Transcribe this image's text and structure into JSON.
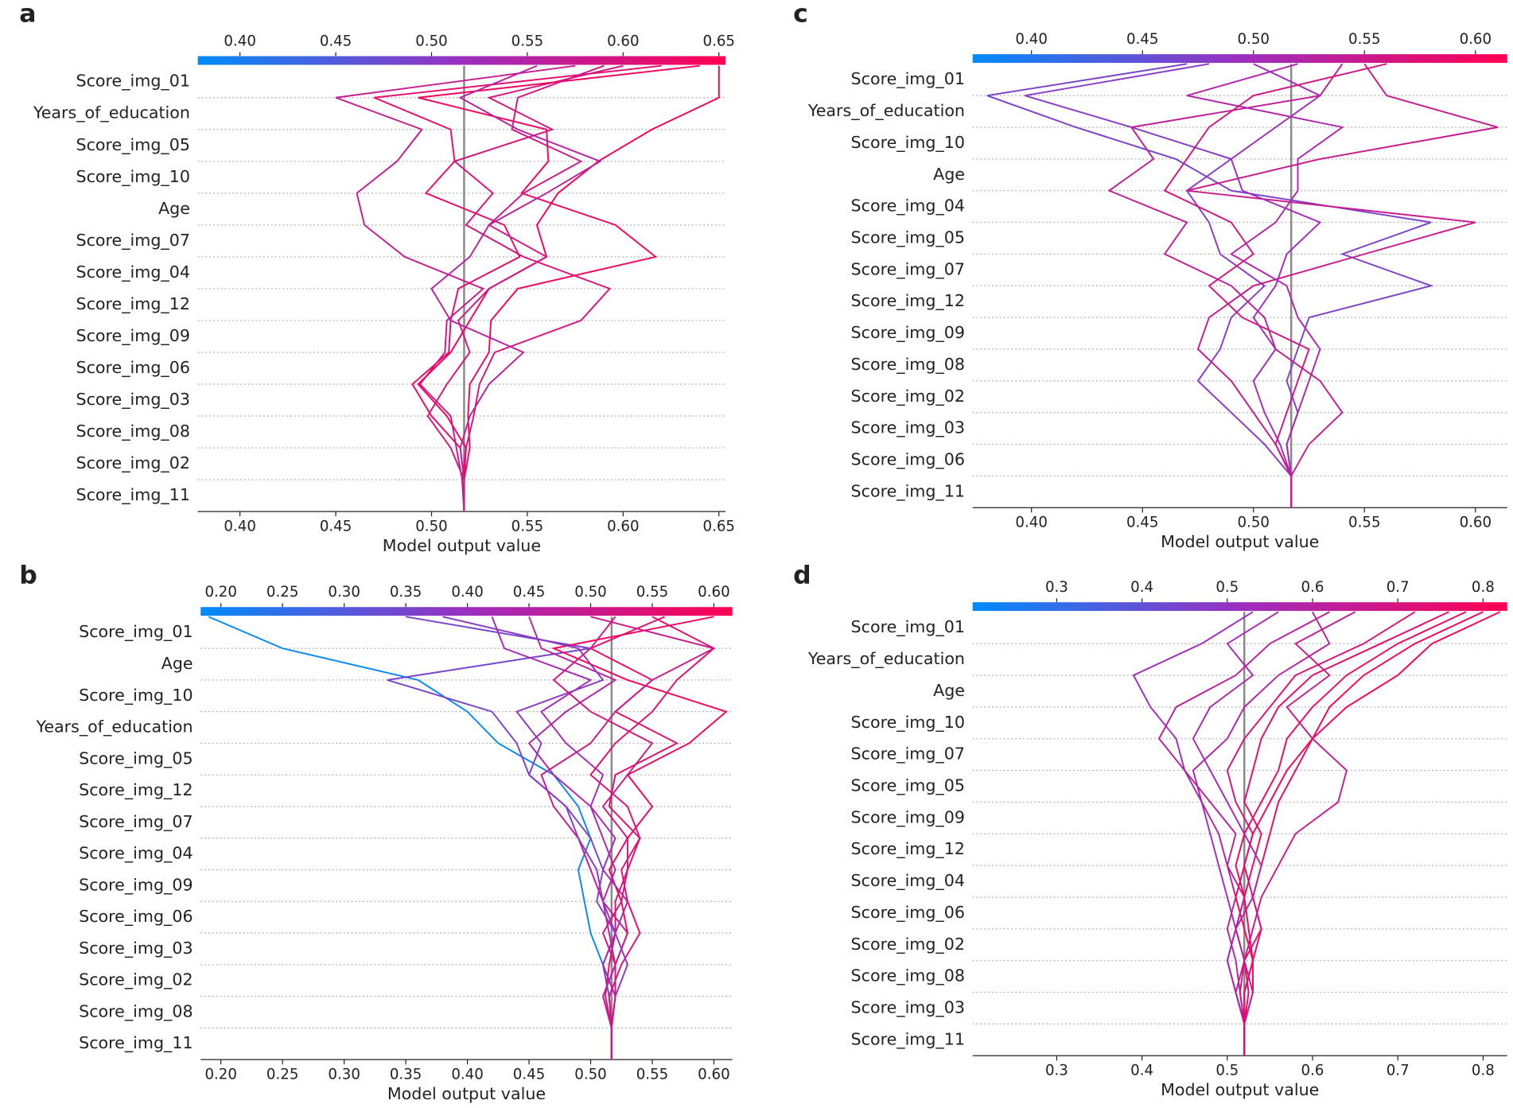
{
  "chart_data": [
    {
      "type": "decision",
      "label": "a",
      "xlabel": "Model output value",
      "features": [
        "Score_img_01",
        "Years_of_education",
        "Score_img_05",
        "Score_img_10",
        "Age",
        "Score_img_07",
        "Score_img_04",
        "Score_img_12",
        "Score_img_09",
        "Score_img_06",
        "Score_img_03",
        "Score_img_08",
        "Score_img_02",
        "Score_img_11"
      ],
      "xlim": [
        0.378,
        0.6535
      ],
      "xticks": [
        {
          "value": 0.4,
          "label": "0.40"
        },
        {
          "value": 0.45,
          "label": "0.45"
        },
        {
          "value": 0.5,
          "label": "0.50"
        },
        {
          "value": 0.55,
          "label": "0.55"
        },
        {
          "value": 0.6,
          "label": "0.60"
        },
        {
          "value": 0.65,
          "label": "0.65"
        }
      ],
      "base_value": 0.517,
      "colormap": [
        "#008bfb",
        "#9b2fc0",
        "#ff0052"
      ],
      "series": [
        {
          "values": [
            0.575,
            0.45,
            0.495,
            0.482,
            0.461,
            0.465,
            0.486,
            0.527,
            0.508,
            0.507,
            0.494,
            0.51,
            0.513,
            0.516
          ]
        },
        {
          "values": [
            0.62,
            0.47,
            0.51,
            0.512,
            0.497,
            0.538,
            0.546,
            0.514,
            0.51,
            0.509,
            0.49,
            0.5,
            0.515,
            0.517
          ]
        },
        {
          "values": [
            0.65,
            0.65,
            0.615,
            0.587,
            0.566,
            0.555,
            0.56,
            0.53,
            0.52,
            0.51,
            0.493,
            0.508,
            0.518,
            0.517
          ]
        },
        {
          "values": [
            0.6,
            0.53,
            0.563,
            0.512,
            0.532,
            0.518,
            0.548,
            0.593,
            0.578,
            0.533,
            0.525,
            0.522,
            0.518,
            0.516
          ]
        },
        {
          "values": [
            0.64,
            0.493,
            0.56,
            0.561,
            0.547,
            0.596,
            0.617,
            0.545,
            0.531,
            0.53,
            0.52,
            0.519,
            0.52,
            0.517
          ]
        },
        {
          "values": [
            0.59,
            0.545,
            0.542,
            0.578,
            0.548,
            0.53,
            0.56,
            0.53,
            0.514,
            0.52,
            0.508,
            0.498,
            0.51,
            0.517
          ]
        },
        {
          "values": [
            0.555,
            0.515,
            0.545,
            0.588,
            0.56,
            0.53,
            0.52,
            0.5,
            0.51,
            0.548,
            0.53,
            0.52,
            0.515,
            0.517
          ]
        }
      ]
    },
    {
      "type": "decision",
      "label": "b",
      "xlabel": "Model output value",
      "features": [
        "Score_img_01",
        "Age",
        "Score_img_10",
        "Years_of_education",
        "Score_img_05",
        "Score_img_12",
        "Score_img_07",
        "Score_img_04",
        "Score_img_09",
        "Score_img_06",
        "Score_img_03",
        "Score_img_02",
        "Score_img_08",
        "Score_img_11"
      ],
      "xlim": [
        0.1836,
        0.615
      ],
      "xticks": [
        {
          "value": 0.2,
          "label": "0.20"
        },
        {
          "value": 0.25,
          "label": "0.25"
        },
        {
          "value": 0.3,
          "label": "0.30"
        },
        {
          "value": 0.35,
          "label": "0.35"
        },
        {
          "value": 0.4,
          "label": "0.40"
        },
        {
          "value": 0.45,
          "label": "0.45"
        },
        {
          "value": 0.5,
          "label": "0.50"
        },
        {
          "value": 0.55,
          "label": "0.55"
        },
        {
          "value": 0.6,
          "label": "0.60"
        }
      ],
      "base_value": 0.517,
      "colormap": [
        "#008bfb",
        "#9b2fc0",
        "#ff0052"
      ],
      "series": [
        {
          "values": [
            0.19,
            0.25,
            0.36,
            0.4,
            0.425,
            0.47,
            0.49,
            0.5,
            0.49,
            0.495,
            0.5,
            0.51,
            0.515,
            0.517
          ]
        },
        {
          "values": [
            0.35,
            0.5,
            0.335,
            0.42,
            0.44,
            0.45,
            0.48,
            0.5,
            0.51,
            0.505,
            0.52,
            0.51,
            0.515,
            0.517
          ]
        },
        {
          "values": [
            0.6,
            0.47,
            0.53,
            0.61,
            0.58,
            0.53,
            0.55,
            0.53,
            0.515,
            0.525,
            0.53,
            0.52,
            0.52,
            0.517
          ]
        },
        {
          "values": [
            0.56,
            0.5,
            0.55,
            0.52,
            0.57,
            0.52,
            0.515,
            0.54,
            0.53,
            0.52,
            0.52,
            0.515,
            0.512,
            0.517
          ]
        },
        {
          "values": [
            0.42,
            0.43,
            0.5,
            0.46,
            0.48,
            0.51,
            0.5,
            0.52,
            0.51,
            0.53,
            0.52,
            0.51,
            0.52,
            0.517
          ]
        },
        {
          "values": [
            0.5,
            0.6,
            0.55,
            0.52,
            0.5,
            0.46,
            0.47,
            0.49,
            0.5,
            0.51,
            0.53,
            0.52,
            0.51,
            0.517
          ]
        },
        {
          "values": [
            0.45,
            0.46,
            0.52,
            0.48,
            0.45,
            0.47,
            0.5,
            0.51,
            0.52,
            0.51,
            0.515,
            0.52,
            0.51,
            0.517
          ]
        },
        {
          "values": [
            0.55,
            0.6,
            0.57,
            0.55,
            0.52,
            0.5,
            0.53,
            0.54,
            0.525,
            0.53,
            0.54,
            0.525,
            0.515,
            0.517
          ]
        },
        {
          "values": [
            0.38,
            0.49,
            0.51,
            0.44,
            0.46,
            0.45,
            0.48,
            0.49,
            0.505,
            0.51,
            0.52,
            0.53,
            0.52,
            0.517
          ]
        },
        {
          "values": [
            0.52,
            0.5,
            0.47,
            0.5,
            0.55,
            0.53,
            0.51,
            0.53,
            0.53,
            0.525,
            0.51,
            0.52,
            0.52,
            0.517
          ]
        }
      ]
    },
    {
      "type": "decision",
      "label": "c",
      "xlabel": "Model output value",
      "features": [
        "Score_img_01",
        "Years_of_education",
        "Score_img_10",
        "Age",
        "Score_img_04",
        "Score_img_05",
        "Score_img_07",
        "Score_img_12",
        "Score_img_09",
        "Score_img_08",
        "Score_img_02",
        "Score_img_03",
        "Score_img_06",
        "Score_img_11"
      ],
      "xlim": [
        0.3735,
        0.6143
      ],
      "xticks": [
        {
          "value": 0.4,
          "label": "0.40"
        },
        {
          "value": 0.45,
          "label": "0.45"
        },
        {
          "value": 0.5,
          "label": "0.50"
        },
        {
          "value": 0.55,
          "label": "0.55"
        },
        {
          "value": 0.6,
          "label": "0.60"
        }
      ],
      "base_value": 0.517,
      "colormap": [
        "#008bfb",
        "#9b2fc0",
        "#ff0052"
      ],
      "series": [
        {
          "values": [
            0.47,
            0.38,
            0.42,
            0.465,
            0.49,
            0.58,
            0.54,
            0.58,
            0.525,
            0.52,
            0.515,
            0.52,
            0.515,
            0.517
          ]
        },
        {
          "values": [
            0.48,
            0.397,
            0.445,
            0.49,
            0.47,
            0.48,
            0.485,
            0.505,
            0.49,
            0.485,
            0.475,
            0.49,
            0.505,
            0.517
          ]
        },
        {
          "values": [
            0.55,
            0.56,
            0.61,
            0.53,
            0.47,
            0.6,
            0.55,
            0.5,
            0.48,
            0.475,
            0.49,
            0.5,
            0.51,
            0.517
          ]
        },
        {
          "values": [
            0.54,
            0.53,
            0.445,
            0.455,
            0.435,
            0.47,
            0.46,
            0.49,
            0.505,
            0.51,
            0.53,
            0.54,
            0.525,
            0.517
          ]
        },
        {
          "values": [
            0.52,
            0.47,
            0.54,
            0.52,
            0.52,
            0.51,
            0.49,
            0.515,
            0.52,
            0.53,
            0.525,
            0.52,
            0.515,
            0.517
          ]
        },
        {
          "values": [
            0.5,
            0.53,
            0.51,
            0.49,
            0.495,
            0.53,
            0.515,
            0.51,
            0.5,
            0.51,
            0.5,
            0.505,
            0.512,
            0.517
          ]
        },
        {
          "values": [
            0.56,
            0.5,
            0.48,
            0.47,
            0.46,
            0.49,
            0.5,
            0.48,
            0.495,
            0.525,
            0.52,
            0.515,
            0.51,
            0.517
          ]
        }
      ]
    },
    {
      "type": "decision",
      "label": "d",
      "xlabel": "Model output value",
      "features": [
        "Score_img_01",
        "Years_of_education",
        "Age",
        "Score_img_10",
        "Score_img_07",
        "Score_img_05",
        "Score_img_09",
        "Score_img_12",
        "Score_img_04",
        "Score_img_06",
        "Score_img_02",
        "Score_img_08",
        "Score_img_03",
        "Score_img_11"
      ],
      "xlim": [
        0.2014,
        0.8283
      ],
      "xticks": [
        0.3,
        0.4,
        0.5,
        0.6,
        0.7,
        0.8
      ],
      "base_value": 0.52,
      "colormap": [
        "#008bfb",
        "#9b2fc0",
        "#ff0052"
      ],
      "series": [
        {
          "values": [
            0.53,
            0.47,
            0.39,
            0.41,
            0.44,
            0.45,
            0.47,
            0.48,
            0.49,
            0.5,
            0.51,
            0.5,
            0.51,
            0.52
          ]
        },
        {
          "values": [
            0.8,
            0.72,
            0.66,
            0.62,
            0.6,
            0.58,
            0.56,
            0.55,
            0.54,
            0.53,
            0.54,
            0.53,
            0.53,
            0.52
          ]
        },
        {
          "values": [
            0.76,
            0.68,
            0.6,
            0.56,
            0.54,
            0.53,
            0.52,
            0.54,
            0.53,
            0.52,
            0.51,
            0.52,
            0.525,
            0.52
          ]
        },
        {
          "values": [
            0.6,
            0.62,
            0.56,
            0.52,
            0.5,
            0.46,
            0.47,
            0.49,
            0.5,
            0.51,
            0.5,
            0.51,
            0.515,
            0.52
          ]
        },
        {
          "values": [
            0.82,
            0.74,
            0.7,
            0.64,
            0.6,
            0.57,
            0.55,
            0.53,
            0.52,
            0.51,
            0.52,
            0.53,
            0.52,
            0.52
          ]
        },
        {
          "values": [
            0.65,
            0.58,
            0.62,
            0.57,
            0.6,
            0.64,
            0.63,
            0.58,
            0.56,
            0.54,
            0.53,
            0.52,
            0.51,
            0.52
          ]
        },
        {
          "values": [
            0.56,
            0.5,
            0.53,
            0.48,
            0.46,
            0.48,
            0.5,
            0.52,
            0.54,
            0.53,
            0.51,
            0.5,
            0.51,
            0.52
          ]
        },
        {
          "values": [
            0.72,
            0.66,
            0.58,
            0.55,
            0.52,
            0.5,
            0.51,
            0.53,
            0.52,
            0.53,
            0.54,
            0.52,
            0.515,
            0.52
          ]
        },
        {
          "values": [
            0.62,
            0.55,
            0.51,
            0.44,
            0.42,
            0.45,
            0.48,
            0.51,
            0.5,
            0.52,
            0.51,
            0.52,
            0.53,
            0.52
          ]
        },
        {
          "values": [
            0.78,
            0.7,
            0.64,
            0.6,
            0.57,
            0.56,
            0.54,
            0.52,
            0.51,
            0.52,
            0.525,
            0.53,
            0.52,
            0.52
          ]
        }
      ]
    }
  ]
}
